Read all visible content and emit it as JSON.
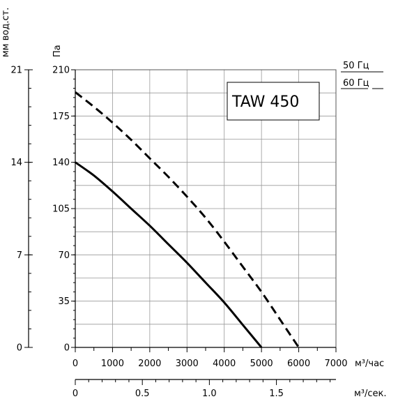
{
  "chart_data": {
    "type": "line",
    "title": "TAW 450",
    "x_primary": {
      "label": "м³/час",
      "range": [
        0,
        7000
      ],
      "ticks": [
        "0",
        "1000",
        "2000",
        "3000",
        "4000",
        "5000",
        "6000",
        "7000"
      ]
    },
    "x_secondary": {
      "label": "м³/сек.",
      "range": [
        0,
        1.944
      ],
      "ticks": [
        "0",
        "0.5",
        "1.0",
        "1.5"
      ]
    },
    "y_primary": {
      "label": "Па",
      "range": [
        0,
        210
      ],
      "ticks": [
        "0",
        "35",
        "70",
        "105",
        "140",
        "175",
        "210"
      ]
    },
    "y_secondary": {
      "label": "мм вод.ст.",
      "range": [
        0,
        21
      ],
      "ticks": [
        "0",
        "7",
        "14",
        "21"
      ]
    },
    "grid": true,
    "legend_position": "top-right",
    "series": [
      {
        "name": "50 Гц",
        "style": "solid",
        "x": [
          0,
          500,
          1000,
          1500,
          2000,
          2500,
          3000,
          3500,
          4000,
          4500,
          5000
        ],
        "y": [
          140,
          130,
          118,
          105,
          92,
          78,
          64,
          49,
          34,
          17,
          0
        ]
      },
      {
        "name": "60 Гц",
        "style": "dashed",
        "x": [
          0,
          500,
          1000,
          1500,
          2000,
          2500,
          3000,
          3500,
          4000,
          4500,
          5000,
          5500,
          6000
        ],
        "y": [
          193,
          182,
          170,
          157,
          143,
          129,
          114,
          98,
          80,
          61,
          42,
          21,
          0
        ]
      }
    ]
  }
}
